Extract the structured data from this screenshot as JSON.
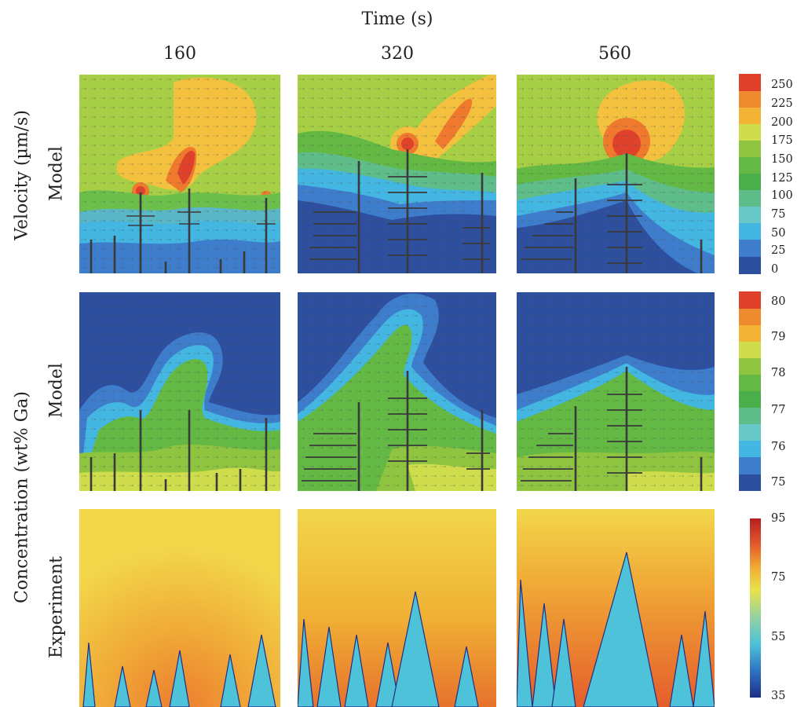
{
  "header": {
    "title": "Time (s)",
    "times": [
      "160",
      "320",
      "560"
    ]
  },
  "rows": [
    {
      "label": "Model",
      "quantity_label": "Velocity (µm/s)"
    },
    {
      "label": "Model"
    },
    {
      "label": "Experiment"
    }
  ],
  "shared_label": "Concentration (wt% Ga)",
  "colorbars": [
    {
      "ticks": [
        "250",
        "225",
        "200",
        "175",
        "150",
        "125",
        "100",
        "75",
        "50",
        "25",
        "0"
      ]
    },
    {
      "ticks": [
        "80",
        "79",
        "78",
        "77",
        "76",
        "75"
      ]
    },
    {
      "ticks": [
        "95",
        "75",
        "55",
        "35"
      ]
    }
  ],
  "palettes": {
    "discrete": [
      "#2e4f9e",
      "#3e7ccc",
      "#43b6e2",
      "#67c8c7",
      "#5ebd89",
      "#4aae4b",
      "#63b943",
      "#8fc440",
      "#cfdd4c",
      "#f3b436",
      "#f08a2f",
      "#e0412a"
    ],
    "continuous": [
      "#1e2e86",
      "#2f74c2",
      "#4ec2d8",
      "#94d1a0",
      "#e8e24c",
      "#f0b034",
      "#e45d2b",
      "#b71e20"
    ]
  }
}
